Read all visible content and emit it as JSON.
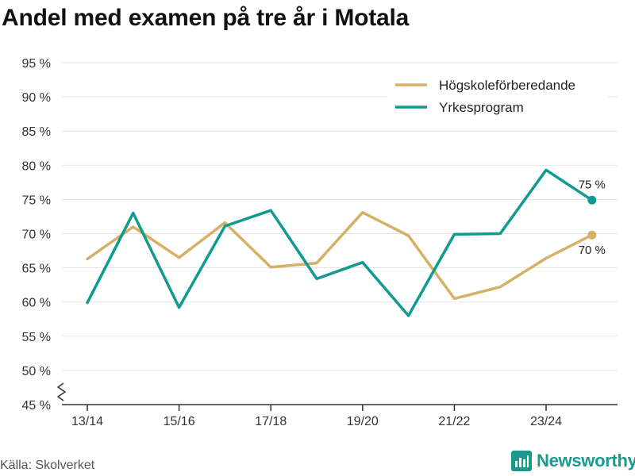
{
  "title": "Andel med examen på tre år i Motala",
  "source": "Källa: Skolverket",
  "brand": "Newsworthy",
  "colors": {
    "series1": "#d6b064",
    "series2": "#119a8f",
    "grid": "#e3e3e3",
    "brand": "#1a9a8f"
  },
  "chart_data": {
    "type": "line",
    "title": "Andel med examen på tre år i Motala",
    "x": [
      "13/14",
      "14/15",
      "15/16",
      "16/17",
      "17/18",
      "18/19",
      "19/20",
      "20/21",
      "21/22",
      "22/23",
      "23/24",
      "24/25"
    ],
    "x_tick_labels": [
      "13/14",
      "15/16",
      "17/18",
      "19/20",
      "21/22",
      "23/24"
    ],
    "ylim": [
      45,
      95
    ],
    "y_ticks": [
      45,
      50,
      55,
      60,
      65,
      70,
      75,
      80,
      85,
      90,
      95
    ],
    "y_tick_labels": [
      "45 %",
      "50 %",
      "55 %",
      "60 %",
      "65 %",
      "70 %",
      "75 %",
      "80 %",
      "85 %",
      "90 %",
      "95 %"
    ],
    "axis_break": true,
    "grid": true,
    "legend_position": "top-right",
    "series": [
      {
        "name": "Högskoleförberedande",
        "values": [
          66.3,
          71.0,
          66.5,
          71.6,
          65.1,
          65.7,
          73.1,
          69.7,
          60.5,
          62.2,
          66.4,
          69.8
        ],
        "end_label": "70 %"
      },
      {
        "name": "Yrkesprogram",
        "values": [
          59.9,
          73.0,
          59.2,
          71.1,
          73.4,
          63.4,
          65.8,
          58.0,
          69.9,
          70.0,
          79.3,
          74.9
        ],
        "end_label": "75 %"
      }
    ]
  }
}
